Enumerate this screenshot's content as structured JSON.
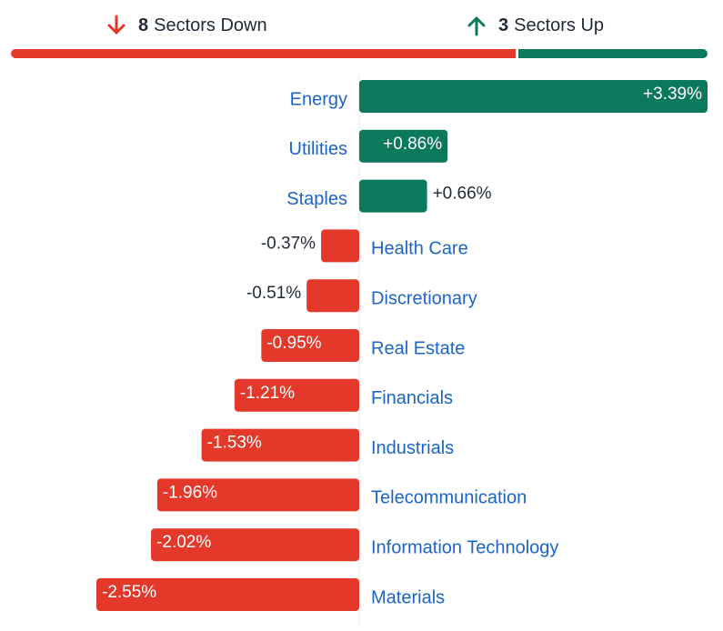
{
  "summary": {
    "down": {
      "count": "8",
      "label": "Sectors Down",
      "icon": "arrow-down-icon",
      "color": "#e4392a"
    },
    "up": {
      "count": "3",
      "label": "Sectors Up",
      "icon": "arrow-up-icon",
      "color": "#0b7a5c"
    }
  },
  "colors": {
    "positive": "#0b7a5c",
    "negative": "#e4392a",
    "label": "#1c64c7",
    "text": "#1f2937"
  },
  "chart_data": {
    "type": "bar",
    "orientation": "horizontal",
    "categories": [
      "Energy",
      "Utilities",
      "Staples",
      "Health Care",
      "Discretionary",
      "Real Estate",
      "Financials",
      "Industrials",
      "Telecommunication",
      "Information Technology",
      "Materials"
    ],
    "values": [
      3.39,
      0.86,
      0.66,
      -0.37,
      -0.51,
      -0.95,
      -1.21,
      -1.53,
      -1.96,
      -2.02,
      -2.55
    ],
    "labels": [
      "+3.39%",
      "+0.86%",
      "+0.66%",
      "-0.37%",
      "-0.51%",
      "-0.95%",
      "-1.21%",
      "-1.53%",
      "-1.96%",
      "-2.02%",
      "-2.55%"
    ],
    "unit": "%",
    "xlim": [
      -2.55,
      3.39
    ],
    "grid": false,
    "legend": "none"
  }
}
